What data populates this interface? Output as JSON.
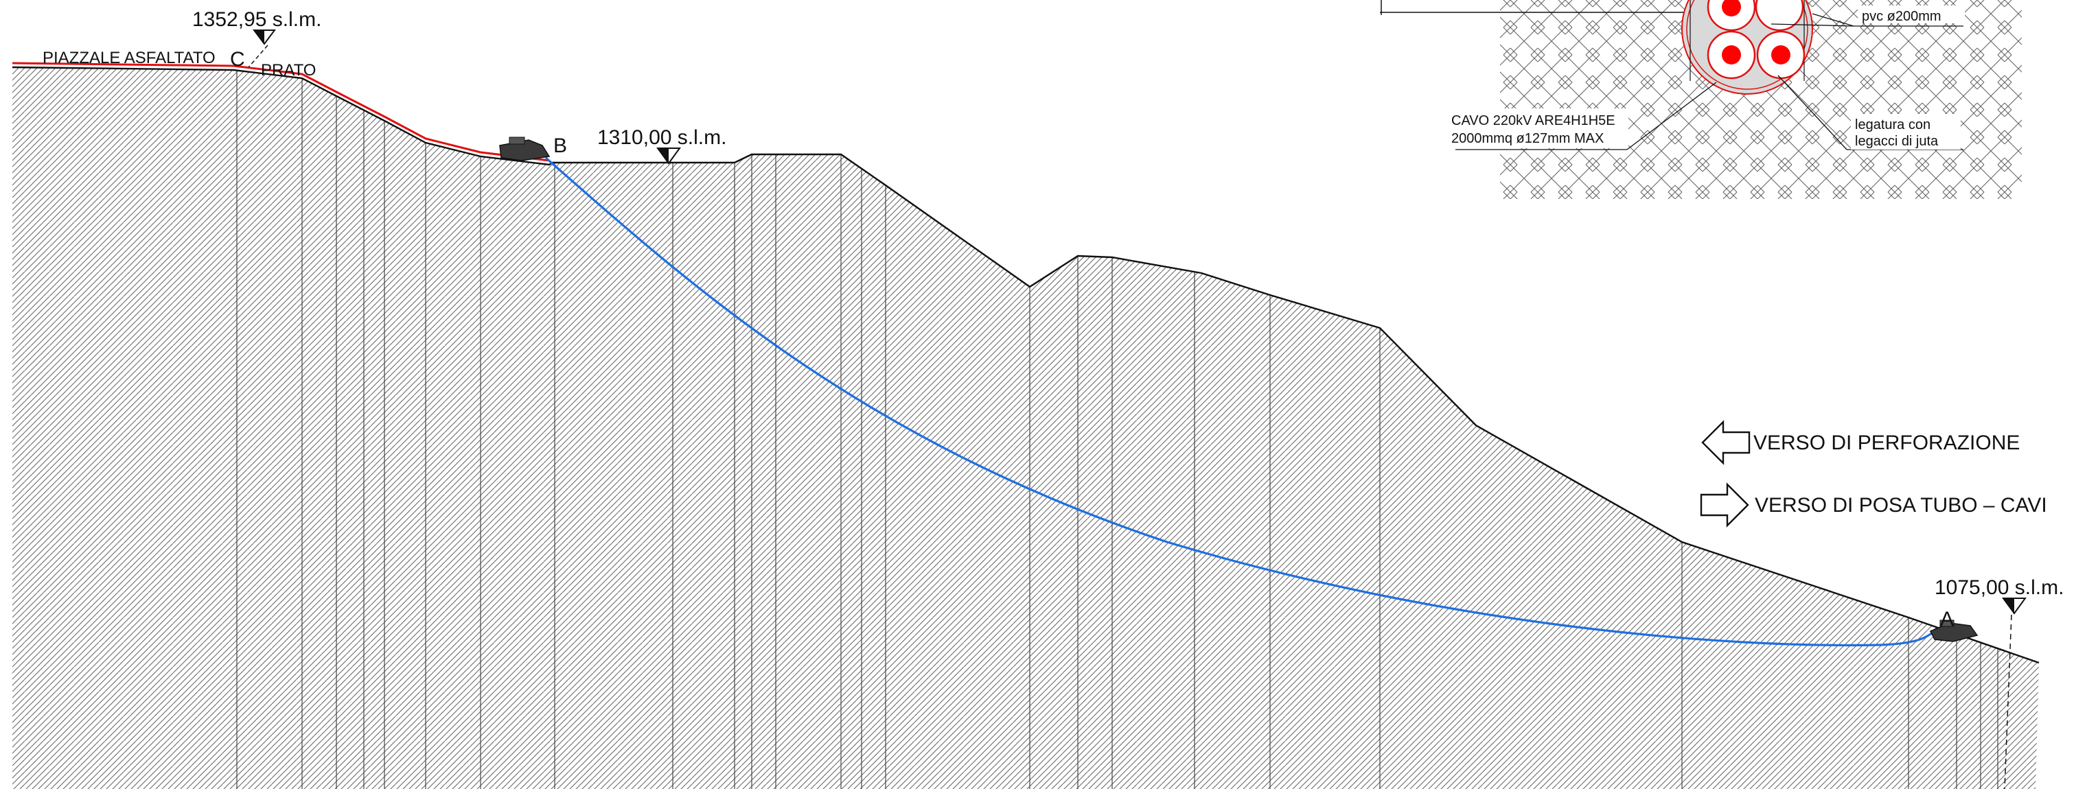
{
  "elevations": {
    "c": "1352,95  s.l.m.",
    "b": "1310,00  s.l.m.",
    "a": "1075,00  s.l.m."
  },
  "points": {
    "c": "C",
    "b": "B",
    "a": "A"
  },
  "surface_labels": {
    "asphalt": "PIAZZALE  ASFALTATO",
    "meadow": "PRATO"
  },
  "legend": {
    "drilling": "VERSO  DI  PERFORAZIONE",
    "laying": "VERSO  DI  POSA  TUBO  –  CAVI"
  },
  "detail": {
    "pvc": "pvc  ø200mm",
    "cable_line1": "CAVO  220kV  ARE4H1H5E",
    "cable_line2": "2000mmq  ø127mm  MAX",
    "binding_line1": "legatura  con",
    "binding_line2": "legacci  di  juta"
  },
  "colors": {
    "ground_line": "#111111",
    "hatch": "#555555",
    "drill_path": "#1e6fe0",
    "asphalt_line": "#e01010",
    "cable_core": "#ff0000"
  }
}
